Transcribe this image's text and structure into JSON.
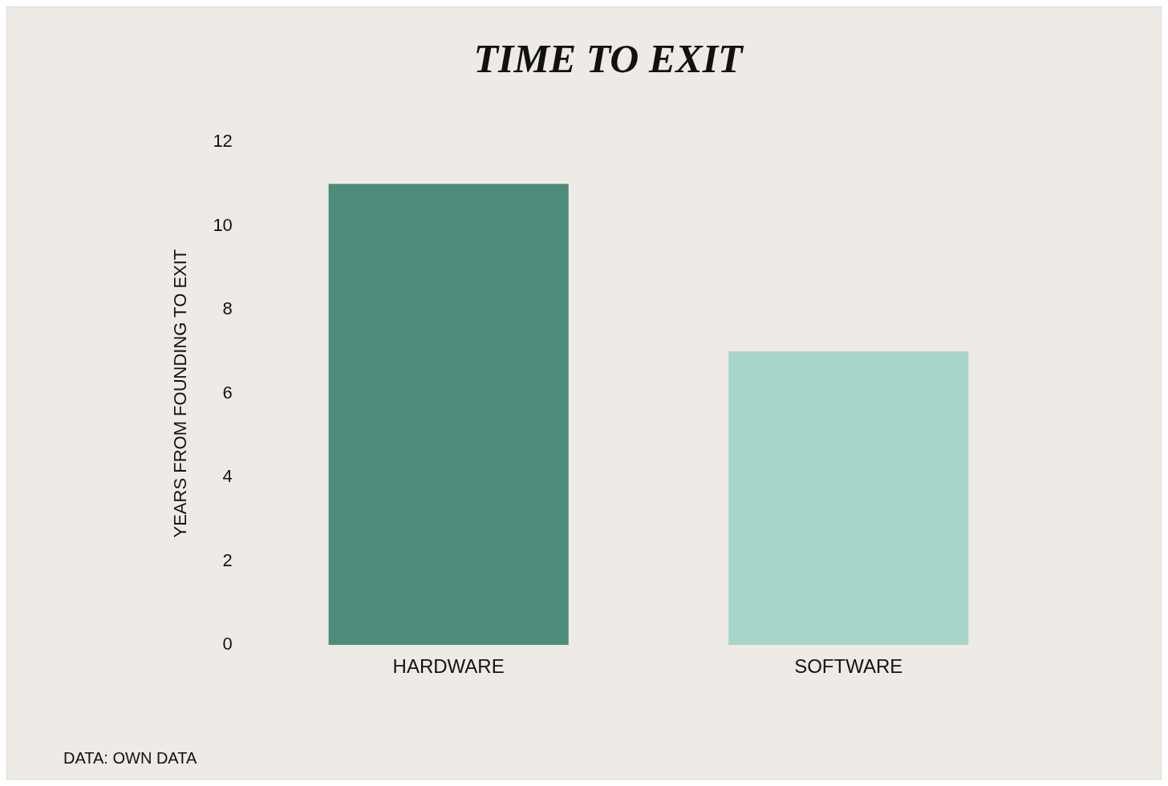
{
  "chart_data": {
    "type": "bar",
    "title": "TIME TO EXIT",
    "ylabel": "YEARS FROM FOUNDING TO EXIT",
    "categories": [
      "HARDWARE",
      "SOFTWARE"
    ],
    "values": [
      11,
      7
    ],
    "colors": [
      "#4d8c7b",
      "#a8d5c9"
    ],
    "ylim": [
      0,
      12
    ],
    "yticks": [
      0,
      2,
      4,
      6,
      8,
      10,
      12
    ],
    "grid": false,
    "legend": false,
    "annotations": [
      "DATA: OWN DATA"
    ]
  }
}
